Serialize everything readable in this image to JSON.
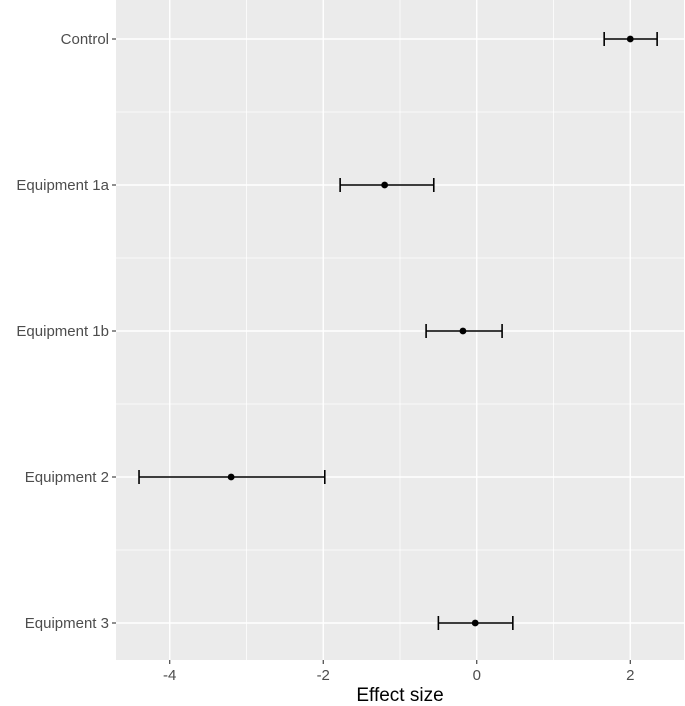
{
  "chart_data": {
    "type": "forest",
    "title": "",
    "xlabel": "Effect size",
    "ylabel": "",
    "xlim": [
      -4.7,
      2.7
    ],
    "x_ticks": [
      -4,
      -2,
      0,
      2
    ],
    "x_tick_labels": [
      "-4",
      "-2",
      "0",
      "2"
    ],
    "grid": true,
    "categories": [
      "Control",
      "Equipment 1a",
      "Equipment 1b",
      "Equipment 2",
      "Equipment 3"
    ],
    "estimates": [
      2.0,
      -1.2,
      -0.18,
      -3.2,
      -0.02
    ],
    "ci_lower": [
      1.66,
      -1.78,
      -0.66,
      -4.4,
      -0.5
    ],
    "ci_upper": [
      2.35,
      -0.56,
      0.33,
      -1.98,
      0.47
    ],
    "colors": {
      "panel": "#ebebeb",
      "grid": "#ffffff",
      "point": "#000000",
      "tick_text": "#4d4d4d",
      "tick_mark": "#333333"
    }
  }
}
